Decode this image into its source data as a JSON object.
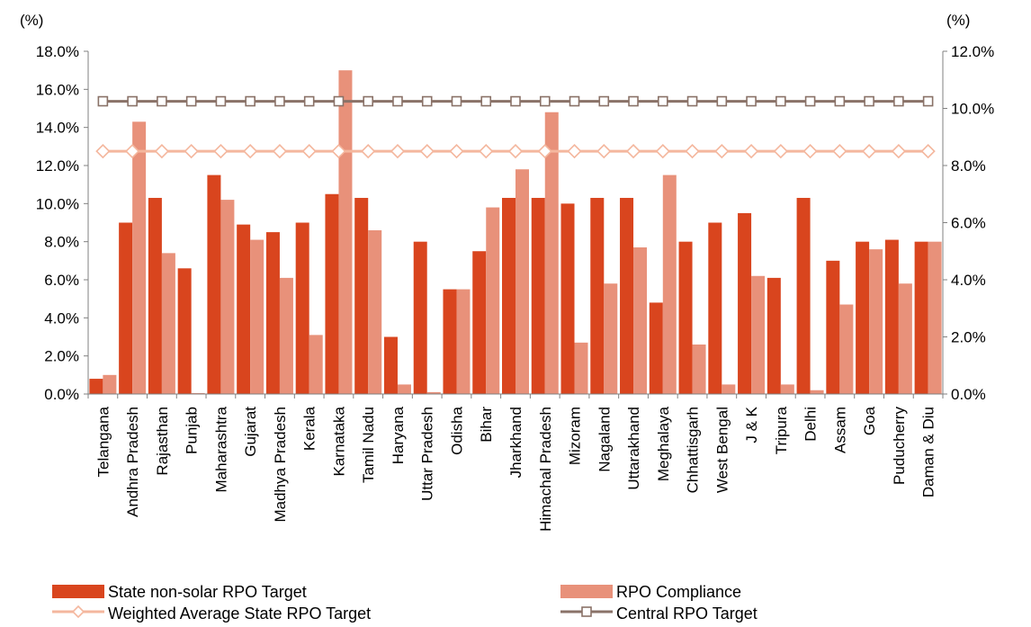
{
  "chart_data": {
    "type": "bar",
    "categories": [
      "Telangana",
      "Andhra Pradesh",
      "Rajasthan",
      "Punjab",
      "Maharashtra",
      "Gujarat",
      "Madhya Pradesh",
      "Kerala",
      "Karnataka",
      "Tamil Nadu",
      "Haryana",
      "Uttar Pradesh",
      "Odisha",
      "Bihar",
      "Jharkhand",
      "Himachal Pradesh",
      "Mizoram",
      "Nagaland",
      "Uttarakhand",
      "Meghalaya",
      "Chhattisgarh",
      "West Bengal",
      "J & K",
      "Tripura",
      "Delhi",
      "Assam",
      "Goa",
      "Puducherry",
      "Daman & Diu"
    ],
    "series": [
      {
        "name": "State non-solar RPO Target",
        "type": "bar",
        "axis": "left",
        "color": "#d9451e",
        "values": [
          0.8,
          9.0,
          10.3,
          6.6,
          11.5,
          8.9,
          8.5,
          9.0,
          10.5,
          10.3,
          3.0,
          8.0,
          5.5,
          7.5,
          10.3,
          10.3,
          10.0,
          10.3,
          10.3,
          4.8,
          8.0,
          9.0,
          9.5,
          6.1,
          10.3,
          7.0,
          8.0,
          8.1,
          8.0
        ]
      },
      {
        "name": "RPO Compliance",
        "type": "bar",
        "axis": "left",
        "color": "#e8917a",
        "values": [
          1.0,
          14.3,
          7.4,
          0.05,
          10.2,
          8.1,
          6.1,
          3.1,
          17.0,
          8.6,
          0.5,
          0.1,
          5.5,
          9.8,
          11.8,
          14.8,
          2.7,
          5.8,
          7.7,
          11.5,
          2.6,
          0.5,
          6.2,
          0.5,
          0.2,
          4.7,
          7.6,
          5.8,
          8.0
        ]
      },
      {
        "name": "Weighted Average State RPO Target",
        "type": "line",
        "axis": "right",
        "color": "#f4b79e",
        "marker": "diamond",
        "value": 8.5
      },
      {
        "name": "Central RPO Target",
        "type": "line",
        "axis": "right",
        "color": "#8a7268",
        "marker": "square",
        "value": 10.25
      }
    ],
    "y_left": {
      "unit": "(%)",
      "ylim": [
        0,
        18
      ],
      "ticks": [
        "0.0%",
        "2.0%",
        "4.0%",
        "6.0%",
        "8.0%",
        "10.0%",
        "12.0%",
        "14.0%",
        "16.0%",
        "18.0%"
      ]
    },
    "y_right": {
      "unit": "(%)",
      "ylim": [
        0,
        12
      ],
      "ticks": [
        "0.0%",
        "2.0%",
        "4.0%",
        "6.0%",
        "8.0%",
        "10.0%",
        "12.0%"
      ]
    },
    "grid": false,
    "legend_position": "bottom"
  }
}
